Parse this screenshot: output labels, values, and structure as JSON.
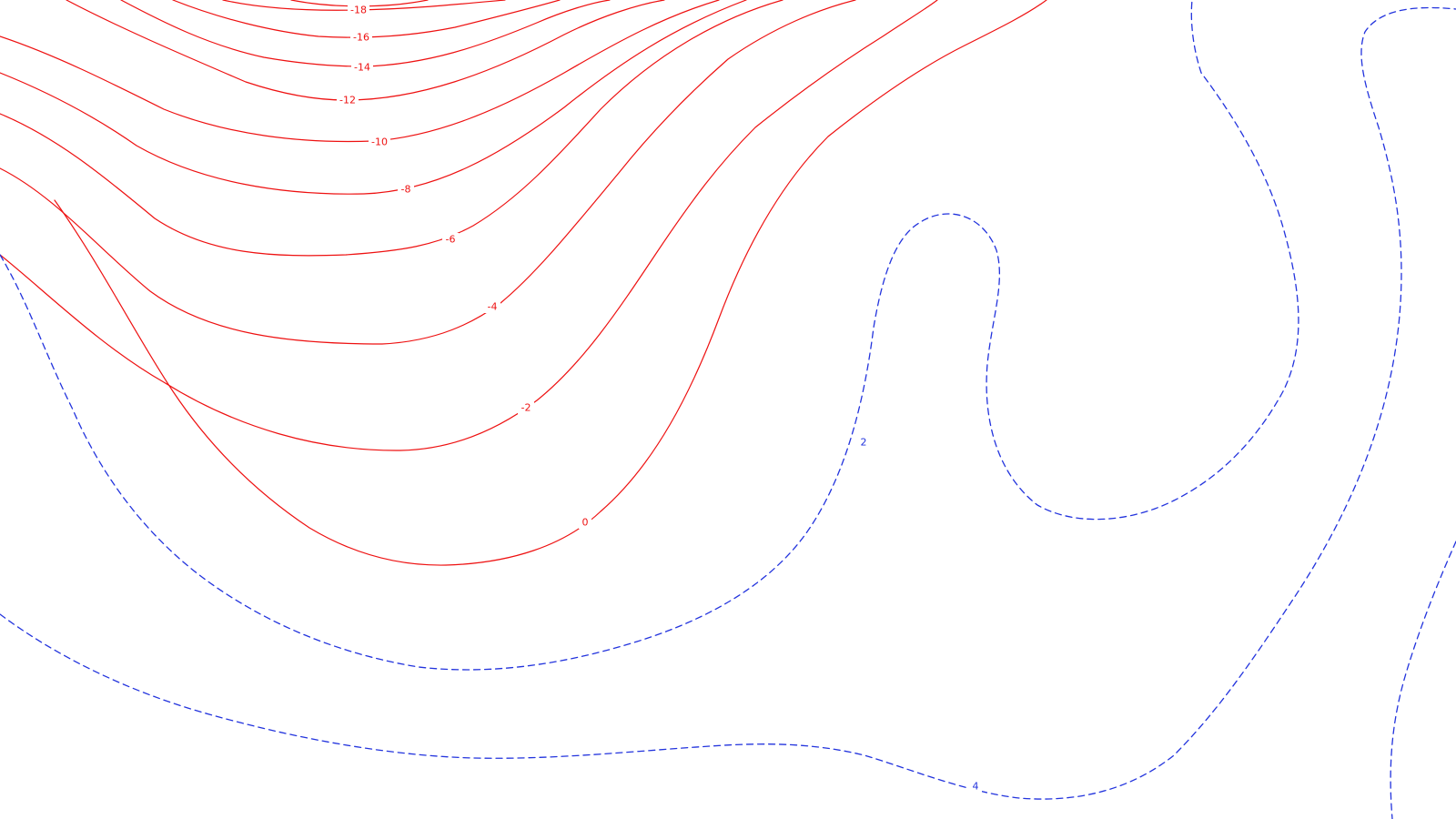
{
  "map": {
    "colors": {
      "negative": "#ee1111",
      "positive": "#2233dd",
      "background": "#ffffff"
    },
    "contour_labels": {
      "n18": "-18",
      "n16": "-16",
      "n14": "-14",
      "n12": "-12",
      "n10": "-10",
      "n8": "-8",
      "n6": "-6",
      "n4": "-4",
      "n2": "-2",
      "z0": "0",
      "p2": "2",
      "p4": "4"
    }
  }
}
